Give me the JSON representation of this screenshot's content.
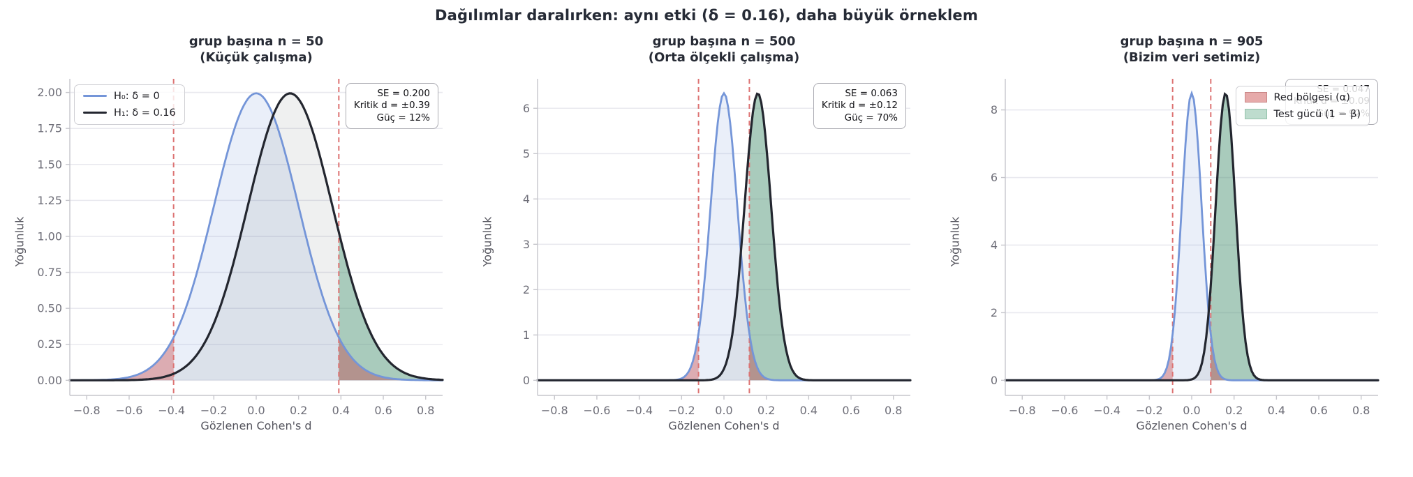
{
  "figure": {
    "suptitle": "Dağılımlar daralırken: aynı etki (δ = 0.16), daha büyük örneklem"
  },
  "colors": {
    "h0_line": "#7495d8",
    "h1_line": "#23262f",
    "reject_fill": "#cc5c5c",
    "power_fill": "#549e7c",
    "critical_line": "#dd7373",
    "grid": "#e9e9ef",
    "spine": "#c6c6cc",
    "tick_label": "#6e6e78"
  },
  "chart_data": [
    {
      "type": "area",
      "title_line1": "grup başına n = 50",
      "title_line2": "(Küçük çalışma)",
      "xlabel": "Gözlenen Cohen's d",
      "ylabel": "Yoğunluk",
      "xlim": [
        -0.88,
        0.88
      ],
      "ylim": [
        -0.105,
        2.095
      ],
      "xticks": [
        {
          "v": -0.8,
          "label": "−0.8"
        },
        {
          "v": -0.6,
          "label": "−0.6"
        },
        {
          "v": -0.4,
          "label": "−0.4"
        },
        {
          "v": -0.2,
          "label": "−0.2"
        },
        {
          "v": 0,
          "label": "0.0"
        },
        {
          "v": 0.2,
          "label": "0.2"
        },
        {
          "v": 0.4,
          "label": "0.4"
        },
        {
          "v": 0.6,
          "label": "0.6"
        },
        {
          "v": 0.8,
          "label": "0.8"
        }
      ],
      "yticks": [
        {
          "v": 0,
          "label": "0.00"
        },
        {
          "v": 0.25,
          "label": "0.25"
        },
        {
          "v": 0.5,
          "label": "0.50"
        },
        {
          "v": 0.75,
          "label": "0.75"
        },
        {
          "v": 1,
          "label": "1.00"
        },
        {
          "v": 1.25,
          "label": "1.25"
        },
        {
          "v": 1.5,
          "label": "1.50"
        },
        {
          "v": 1.75,
          "label": "1.75"
        },
        {
          "v": 2,
          "label": "2.00"
        }
      ],
      "h0": {
        "name": "H₀: δ = 0",
        "mu": 0,
        "sigma": 0.2,
        "peak": 1.994
      },
      "h1": {
        "name": "H₁: δ = 0.16",
        "mu": 0.16,
        "sigma": 0.2,
        "peak": 1.994
      },
      "critical_d": 0.39,
      "se": "0.200",
      "annotation": [
        "SE = 0.200",
        "Kritik d = ±0.39",
        "Güç = 12%"
      ],
      "legend": [
        {
          "label": "H₀: δ = 0"
        },
        {
          "label": "H₁: δ = 0.16"
        }
      ]
    },
    {
      "type": "area",
      "title_line1": "grup başına n = 500",
      "title_line2": "(Orta ölçekli çalışma)",
      "xlabel": "Gözlenen Cohen's d",
      "ylabel": "Yoğunluk",
      "xlim": [
        -0.88,
        0.88
      ],
      "ylim": [
        -0.333,
        6.65
      ],
      "xticks": [
        {
          "v": -0.8,
          "label": "−0.8"
        },
        {
          "v": -0.6,
          "label": "−0.6"
        },
        {
          "v": -0.4,
          "label": "−0.4"
        },
        {
          "v": -0.2,
          "label": "−0.2"
        },
        {
          "v": 0,
          "label": "0.0"
        },
        {
          "v": 0.2,
          "label": "0.2"
        },
        {
          "v": 0.4,
          "label": "0.4"
        },
        {
          "v": 0.6,
          "label": "0.6"
        },
        {
          "v": 0.8,
          "label": "0.8"
        }
      ],
      "yticks": [
        {
          "v": 0,
          "label": "0"
        },
        {
          "v": 1,
          "label": "1"
        },
        {
          "v": 2,
          "label": "2"
        },
        {
          "v": 3,
          "label": "3"
        },
        {
          "v": 4,
          "label": "4"
        },
        {
          "v": 5,
          "label": "5"
        },
        {
          "v": 6,
          "label": "6"
        }
      ],
      "h0": {
        "name": "H₀: δ = 0",
        "mu": 0,
        "sigma": 0.063,
        "peak": 6.33
      },
      "h1": {
        "name": "H₁: δ = 0.16",
        "mu": 0.16,
        "sigma": 0.063,
        "peak": 6.33
      },
      "critical_d": 0.12,
      "se": "0.063",
      "annotation": [
        "SE = 0.063",
        "Kritik d = ±0.12",
        "Güç = 70%"
      ]
    },
    {
      "type": "area",
      "title_line1": "grup başına n = 905",
      "title_line2": "(Bizim veri setimiz)",
      "xlabel": "Gözlenen Cohen's d",
      "ylabel": "Yoğunluk",
      "xlim": [
        -0.88,
        0.88
      ],
      "ylim": [
        -0.447,
        8.92
      ],
      "xticks": [
        {
          "v": -0.8,
          "label": "−0.8"
        },
        {
          "v": -0.6,
          "label": "−0.6"
        },
        {
          "v": -0.4,
          "label": "−0.4"
        },
        {
          "v": -0.2,
          "label": "−0.2"
        },
        {
          "v": 0,
          "label": "0.0"
        },
        {
          "v": 0.2,
          "label": "0.2"
        },
        {
          "v": 0.4,
          "label": "0.4"
        },
        {
          "v": 0.6,
          "label": "0.6"
        },
        {
          "v": 0.8,
          "label": "0.8"
        }
      ],
      "yticks": [
        {
          "v": 0,
          "label": "0"
        },
        {
          "v": 2,
          "label": "2"
        },
        {
          "v": 4,
          "label": "4"
        },
        {
          "v": 6,
          "label": "6"
        },
        {
          "v": 8,
          "label": "8"
        }
      ],
      "h0": {
        "name": "H₀: δ = 0",
        "mu": 0,
        "sigma": 0.047,
        "peak": 8.49
      },
      "h1": {
        "name": "H₁: δ = 0.16",
        "mu": 0.16,
        "sigma": 0.047,
        "peak": 8.49
      },
      "critical_d": 0.09,
      "se": "0.047",
      "annotation": [
        "SE = 0.047",
        "Kritik d = ±0.09",
        "Güç = 92%"
      ],
      "legend": [
        {
          "label": "Red bölgesi (α)"
        },
        {
          "label": "Test gücü (1 − β)"
        }
      ]
    }
  ]
}
